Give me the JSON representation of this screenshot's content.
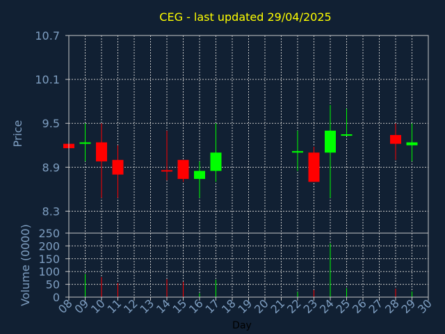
{
  "chart_data": {
    "type": "candlestick",
    "title": "CEG - last updated 29/04/2025",
    "ylabel": "Price",
    "volume_label": "Volume (0000)",
    "xlabel": "Day",
    "ylim": [
      8.0,
      10.7
    ],
    "volume_ylim": [
      0,
      250
    ],
    "yticks": [
      "8.3",
      "8.9",
      "9.5",
      "10.1",
      "10.7"
    ],
    "volume_ticks": [
      "0",
      "50",
      "100",
      "150",
      "200",
      "250"
    ],
    "x_ticks": [
      "08",
      "09",
      "10",
      "11",
      "12",
      "13",
      "14",
      "15",
      "16",
      "17",
      "18",
      "19",
      "20",
      "21",
      "22",
      "23",
      "24",
      "25",
      "26",
      "27",
      "28",
      "29",
      "30"
    ],
    "up_color": "#00ff00",
    "down_color": "#ff0000",
    "candles": [
      {
        "day": 8,
        "open": 9.22,
        "high": 9.22,
        "low": 9.16,
        "close": 9.16,
        "volume": 0
      },
      {
        "day": 9,
        "open": 9.22,
        "high": 9.5,
        "low": 8.98,
        "close": 9.24,
        "volume": 90
      },
      {
        "day": 10,
        "open": 9.24,
        "high": 9.5,
        "low": 8.48,
        "close": 8.98,
        "volume": 78
      },
      {
        "day": 11,
        "open": 9.0,
        "high": 9.2,
        "low": 8.48,
        "close": 8.8,
        "volume": 55
      },
      {
        "day": 14,
        "open": 8.86,
        "high": 9.4,
        "low": 8.72,
        "close": 8.85,
        "volume": 70
      },
      {
        "day": 15,
        "open": 9.0,
        "high": 9.0,
        "low": 8.7,
        "close": 8.74,
        "volume": 60
      },
      {
        "day": 16,
        "open": 8.74,
        "high": 8.98,
        "low": 8.48,
        "close": 8.85,
        "volume": 15
      },
      {
        "day": 17,
        "open": 8.85,
        "high": 9.5,
        "low": 8.7,
        "close": 9.1,
        "volume": 68
      },
      {
        "day": 22,
        "open": 9.1,
        "high": 9.4,
        "low": 8.85,
        "close": 9.12,
        "volume": 20
      },
      {
        "day": 23,
        "open": 9.1,
        "high": 9.18,
        "low": 8.7,
        "close": 8.7,
        "volume": 28
      },
      {
        "day": 24,
        "open": 9.1,
        "high": 9.75,
        "low": 8.48,
        "close": 9.4,
        "volume": 210
      },
      {
        "day": 25,
        "open": 9.33,
        "high": 9.7,
        "low": 9.33,
        "close": 9.35,
        "volume": 35
      },
      {
        "day": 28,
        "open": 9.34,
        "high": 9.5,
        "low": 9.0,
        "close": 9.22,
        "volume": 33
      },
      {
        "day": 29,
        "open": 9.2,
        "high": 9.5,
        "low": 8.98,
        "close": 9.24,
        "volume": 22
      }
    ]
  }
}
